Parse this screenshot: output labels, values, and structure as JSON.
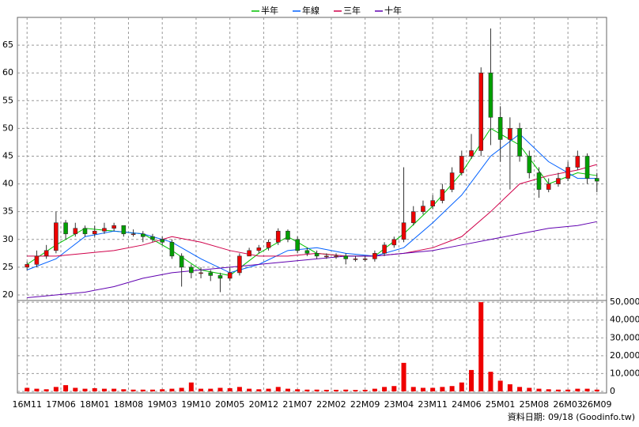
{
  "chart_data": {
    "type": "candlestick",
    "legend": [
      {
        "name": "半年",
        "color": "#00c000"
      },
      {
        "name": "年線",
        "color": "#0060ff"
      },
      {
        "name": "三年",
        "color": "#d0004a"
      },
      {
        "name": "十年",
        "color": "#6000b0"
      }
    ],
    "footer": "資料日期: 09/18 (Goodinfo.tw)",
    "up_color": "#ee0000",
    "down_color": "#00a000",
    "volume_color": "#ee0000",
    "grid": true,
    "xlim": [
      -2,
      120
    ],
    "xticks": [
      {
        "value": 0,
        "label": "16M11"
      },
      {
        "value": 7,
        "label": "17M06"
      },
      {
        "value": 14,
        "label": "18M01"
      },
      {
        "value": 21,
        "label": "18M08"
      },
      {
        "value": 28,
        "label": "19M03"
      },
      {
        "value": 35,
        "label": "19M10"
      },
      {
        "value": 42,
        "label": "20M05"
      },
      {
        "value": 49,
        "label": "20M12"
      },
      {
        "value": 56,
        "label": "21M07"
      },
      {
        "value": 63,
        "label": "22M02"
      },
      {
        "value": 70,
        "label": "22M09"
      },
      {
        "value": 77,
        "label": "23M04"
      },
      {
        "value": 84,
        "label": "23M11"
      },
      {
        "value": 91,
        "label": "24M06"
      },
      {
        "value": 98,
        "label": "25M01"
      },
      {
        "value": 105,
        "label": "25M08"
      },
      {
        "value": 112,
        "label": "26M03"
      },
      {
        "value": 118,
        "label": "26M09"
      }
    ],
    "ylim": [
      19,
      70
    ],
    "yticks": [
      20,
      25,
      30,
      35,
      40,
      45,
      50,
      55,
      60,
      65
    ],
    "y2lim": [
      0,
      50500
    ],
    "y2ticks": [
      0,
      {
        "value": 10000,
        "label": "10,000"
      },
      {
        "value": 20000,
        "label": "20,000"
      },
      {
        "value": 30000,
        "label": "30,000"
      },
      {
        "value": 40000,
        "label": "40,000"
      },
      {
        "value": 50000,
        "label": "50,000"
      }
    ],
    "candles": {
      "x": [
        0,
        2,
        4,
        6,
        8,
        10,
        12,
        14,
        16,
        18,
        20,
        22,
        24,
        26,
        28,
        30,
        32,
        34,
        36,
        38,
        40,
        42,
        44,
        46,
        48,
        50,
        52,
        54,
        56,
        58,
        60,
        62,
        64,
        66,
        68,
        70,
        72,
        74,
        76,
        78,
        80,
        82,
        84,
        86,
        88,
        90,
        92,
        94,
        96,
        98,
        100,
        102,
        104,
        106,
        108,
        110,
        112,
        114,
        116,
        118
      ],
      "open": [
        25,
        25.5,
        27,
        28,
        33,
        31,
        32,
        31,
        31.5,
        32,
        32.5,
        31,
        31,
        30.5,
        30,
        29.5,
        27,
        25,
        24,
        24,
        23.5,
        23,
        24,
        27,
        28,
        28.5,
        29.5,
        31.5,
        30,
        28,
        27.5,
        27,
        27,
        27,
        26.5,
        26.5,
        26.5,
        27.5,
        29,
        30,
        33,
        35,
        36,
        37,
        39,
        42,
        45,
        46,
        60,
        52,
        48,
        50,
        45,
        42,
        39,
        40,
        41,
        43,
        45,
        41
      ],
      "high": [
        26,
        28,
        29,
        35,
        33.5,
        33,
        32.5,
        32.5,
        33,
        33,
        32.5,
        31.8,
        31.5,
        31,
        30.5,
        30,
        27.5,
        25.5,
        25,
        24.5,
        24,
        25,
        27.5,
        28.5,
        29,
        30,
        32,
        31.8,
        30.5,
        28.5,
        28,
        27.5,
        27.5,
        27.5,
        27,
        27,
        28,
        29.5,
        30.5,
        43,
        36,
        37,
        38,
        40,
        43,
        46,
        49,
        61,
        68,
        54,
        52,
        51,
        46,
        43,
        41,
        42,
        44,
        46,
        45.5,
        42
      ],
      "low": [
        24.5,
        25,
        26.5,
        27.5,
        30,
        30.5,
        30.5,
        30.5,
        31,
        31.5,
        30.5,
        30.5,
        29.5,
        29.5,
        29,
        26.5,
        21.5,
        23,
        23,
        22.5,
        20.5,
        22.5,
        23.5,
        27,
        27.5,
        28,
        29,
        29.5,
        27.5,
        27,
        26.5,
        26.5,
        26.5,
        25.5,
        26,
        26,
        26,
        27,
        28.5,
        29.5,
        32.5,
        34.5,
        35.5,
        36.5,
        38.5,
        41.5,
        44.5,
        45,
        47,
        44,
        39,
        44,
        41,
        37.5,
        38.5,
        39.5,
        40.5,
        42.5,
        40,
        38.5
      ],
      "close": [
        25.5,
        27,
        28,
        33,
        31,
        32,
        31,
        31.5,
        32,
        32.5,
        31,
        31,
        30.5,
        30,
        29.5,
        27,
        25,
        24,
        24,
        23.5,
        23,
        24,
        27,
        28,
        28.5,
        29.5,
        31.5,
        30,
        28,
        27.5,
        27,
        27,
        27,
        26.5,
        26.5,
        26.5,
        27.5,
        29,
        30,
        33,
        35,
        36,
        37,
        39,
        42,
        45,
        46,
        60,
        52,
        48,
        50,
        45,
        42,
        39,
        40,
        41,
        43,
        45,
        41,
        40.5
      ],
      "volume": [
        2000,
        1500,
        1200,
        2500,
        3500,
        2000,
        1500,
        1800,
        1500,
        1500,
        1200,
        1000,
        1000,
        1000,
        1200,
        1500,
        2000,
        5000,
        1500,
        1500,
        2000,
        1800,
        2500,
        1500,
        1200,
        1500,
        2500,
        1500,
        1200,
        1000,
        1000,
        900,
        900,
        1000,
        800,
        900,
        1500,
        2500,
        3000,
        16000,
        2500,
        2000,
        2000,
        2500,
        3000,
        5000,
        12000,
        50000,
        11000,
        6000,
        4000,
        2500,
        2000,
        1500,
        1200,
        1000,
        1000,
        1500,
        1500,
        1000
      ]
    },
    "series": [
      {
        "name": "半年",
        "color": "#00c000",
        "x": [
          0,
          6,
          12,
          18,
          24,
          30,
          36,
          42,
          48,
          54,
          60,
          66,
          72,
          78,
          84,
          90,
          96,
          102,
          108,
          114,
          118
        ],
        "values": [
          25.5,
          29,
          32,
          31.5,
          31,
          28,
          24.5,
          23.5,
          27.5,
          30.5,
          27.5,
          27,
          27,
          31,
          36,
          42,
          50,
          47,
          40,
          42,
          41.5
        ]
      },
      {
        "name": "年線",
        "color": "#0060ff",
        "x": [
          0,
          6,
          12,
          18,
          24,
          30,
          36,
          42,
          48,
          54,
          60,
          66,
          72,
          78,
          84,
          90,
          96,
          102,
          108,
          114,
          118
        ],
        "values": [
          24.5,
          26.5,
          30.5,
          31.5,
          31,
          29.5,
          26.5,
          24,
          25.5,
          28,
          28.5,
          27.5,
          27,
          28.5,
          33,
          38,
          45,
          49,
          44,
          41,
          41
        ]
      },
      {
        "name": "三年",
        "color": "#d0004a",
        "x": [
          0,
          6,
          12,
          18,
          24,
          30,
          36,
          42,
          48,
          54,
          60,
          66,
          72,
          78,
          84,
          90,
          96,
          102,
          108,
          114,
          118
        ],
        "values": [
          27,
          27,
          27.5,
          28,
          29,
          30.5,
          29.5,
          28,
          27,
          27,
          27.5,
          27,
          27,
          27.5,
          28.5,
          30.5,
          35,
          40,
          41.5,
          42.5,
          43.5
        ]
      },
      {
        "name": "十年",
        "color": "#6000b0",
        "x": [
          0,
          6,
          12,
          18,
          24,
          30,
          36,
          42,
          48,
          54,
          60,
          66,
          72,
          78,
          84,
          90,
          96,
          102,
          108,
          114,
          118
        ],
        "values": [
          19.5,
          20,
          20.5,
          21.5,
          23,
          24,
          24.5,
          25,
          25.5,
          26,
          26.5,
          27,
          27,
          27.5,
          28,
          29,
          30,
          31,
          32,
          32.5,
          33.2
        ]
      }
    ]
  }
}
